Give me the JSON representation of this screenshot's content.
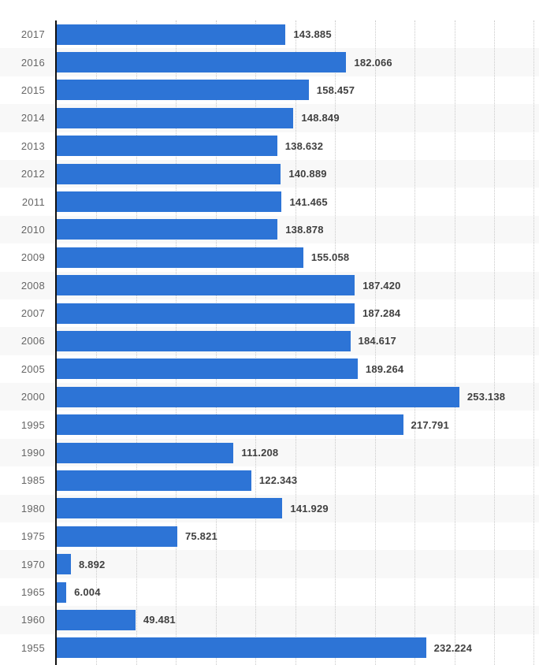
{
  "chart_data": {
    "type": "bar",
    "orientation": "horizontal",
    "categories": [
      "2017",
      "2016",
      "2015",
      "2014",
      "2013",
      "2012",
      "2011",
      "2010",
      "2009",
      "2008",
      "2007",
      "2006",
      "2005",
      "2000",
      "1995",
      "1990",
      "1985",
      "1980",
      "1975",
      "1970",
      "1965",
      "1960",
      "1955"
    ],
    "values": [
      143.885,
      182.066,
      158.457,
      148.849,
      138.632,
      140.889,
      141.465,
      138.878,
      155.058,
      187.42,
      187.284,
      184.617,
      189.264,
      253.138,
      217.791,
      111.208,
      122.343,
      141.929,
      75.821,
      8.892,
      6.004,
      49.481,
      232.224
    ],
    "value_labels": [
      "143.885",
      "182.066",
      "158.457",
      "148.849",
      "138.632",
      "140.889",
      "141.465",
      "138.878",
      "155.058",
      "187.420",
      "187.284",
      "184.617",
      "189.264",
      "253.138",
      "217.791",
      "111.208",
      "122.343",
      "141.929",
      "75.821",
      "8.892",
      "6.004",
      "49.481",
      "232.224"
    ],
    "title": "",
    "xlabel": "",
    "ylabel": "",
    "xlim": [
      0,
      303
    ],
    "gridline_interval": 25,
    "gridlines": "vertical-dotted",
    "legend": "none",
    "x_tick_labels_visible": false
  },
  "style": {
    "bar_color": "#2d74d6",
    "row_stripe_color": "#f8f8f8",
    "gridline_color": "#c9c9c9",
    "axis_color": "#111111",
    "year_label_color": "#666666",
    "value_label_color": "#404040",
    "background_color": "#ffffff"
  }
}
